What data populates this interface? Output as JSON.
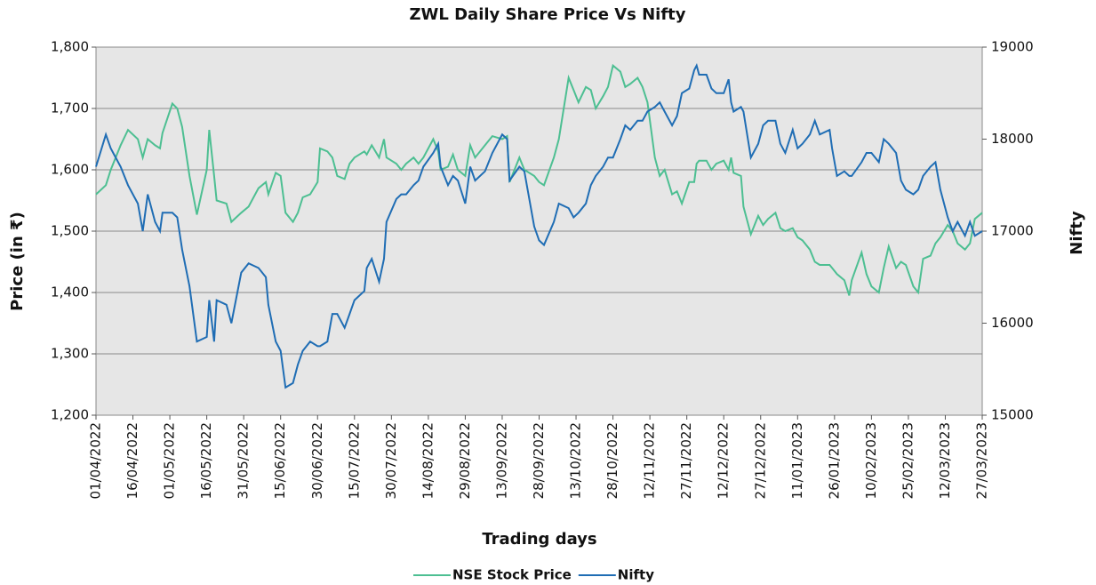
{
  "chart_data": {
    "type": "line",
    "title": "ZWL Daily Share Price Vs Nifty",
    "x_label": "Trading days",
    "y_label": "Price (in ₹)",
    "y2_label": "Nifty",
    "grid": true,
    "legend": "bottom",
    "x": [
      "01/04/2022",
      "05/04/2022",
      "07/04/2022",
      "11/04/2022",
      "14/04/2022",
      "18/04/2022",
      "20/04/2022",
      "22/04/2022",
      "25/04/2022",
      "27/04/2022",
      "28/04/2022",
      "02/05/2022",
      "04/05/2022",
      "06/05/2022",
      "09/05/2022",
      "12/05/2022",
      "16/05/2022",
      "17/05/2022",
      "19/05/2022",
      "20/05/2022",
      "24/05/2022",
      "26/05/2022",
      "30/05/2022",
      "02/06/2022",
      "06/06/2022",
      "09/06/2022",
      "10/06/2022",
      "13/06/2022",
      "15/06/2022",
      "17/06/2022",
      "20/06/2022",
      "22/06/2022",
      "24/06/2022",
      "27/06/2022",
      "30/06/2022",
      "01/07/2022",
      "04/07/2022",
      "06/07/2022",
      "08/07/2022",
      "11/07/2022",
      "13/07/2022",
      "15/07/2022",
      "19/07/2022",
      "20/07/2022",
      "22/07/2022",
      "25/07/2022",
      "27/07/2022",
      "28/07/2022",
      "01/08/2022",
      "03/08/2022",
      "05/08/2022",
      "08/08/2022",
      "10/08/2022",
      "12/08/2022",
      "16/08/2022",
      "18/08/2022",
      "19/08/2022",
      "22/08/2022",
      "24/08/2022",
      "26/08/2022",
      "29/08/2022",
      "31/08/2022",
      "02/09/2022",
      "06/09/2022",
      "09/09/2022",
      "13/09/2022",
      "15/09/2022",
      "16/09/2022",
      "20/09/2022",
      "22/09/2022",
      "26/09/2022",
      "28/09/2022",
      "30/09/2022",
      "04/10/2022",
      "06/10/2022",
      "10/10/2022",
      "12/10/2022",
      "14/10/2022",
      "17/10/2022",
      "19/10/2022",
      "21/10/2022",
      "24/10/2022",
      "26/10/2022",
      "28/10/2022",
      "31/10/2022",
      "02/11/2022",
      "04/11/2022",
      "07/11/2022",
      "09/11/2022",
      "11/11/2022",
      "14/11/2022",
      "16/11/2022",
      "18/11/2022",
      "21/11/2022",
      "23/11/2022",
      "25/11/2022",
      "28/11/2022",
      "30/11/2022",
      "01/12/2022",
      "02/12/2022",
      "05/12/2022",
      "07/12/2022",
      "09/12/2022",
      "12/12/2022",
      "14/12/2022",
      "15/12/2022",
      "16/12/2022",
      "19/12/2022",
      "20/12/2022",
      "23/12/2022",
      "26/12/2022",
      "28/12/2022",
      "30/12/2022",
      "02/01/2023",
      "04/01/2023",
      "06/01/2023",
      "09/01/2023",
      "11/01/2023",
      "13/01/2023",
      "16/01/2023",
      "18/01/2023",
      "20/01/2023",
      "24/01/2023",
      "25/01/2023",
      "27/01/2023",
      "30/01/2023",
      "01/02/2023",
      "02/02/2023",
      "06/02/2023",
      "08/02/2023",
      "10/02/2023",
      "13/02/2023",
      "15/02/2023",
      "17/02/2023",
      "20/02/2023",
      "22/02/2023",
      "24/02/2023",
      "27/02/2023",
      "01/03/2023",
      "03/03/2023",
      "06/03/2023",
      "08/03/2023",
      "10/03/2023",
      "13/03/2023",
      "15/03/2023",
      "17/03/2023",
      "20/03/2023",
      "22/03/2023",
      "24/03/2023",
      "27/03/2023"
    ],
    "series": [
      {
        "name": "NSE Stock Price",
        "color": "#4dbf92",
        "values": [
          1560,
          1575,
          1600,
          1640,
          1665,
          1650,
          1620,
          1650,
          1640,
          1635,
          1660,
          1708,
          1700,
          1670,
          1590,
          1527,
          1600,
          1665,
          1590,
          1550,
          1545,
          1515,
          1530,
          1540,
          1570,
          1580,
          1560,
          1595,
          1590,
          1530,
          1515,
          1530,
          1555,
          1560,
          1580,
          1635,
          1630,
          1620,
          1590,
          1585,
          1610,
          1620,
          1630,
          1625,
          1640,
          1620,
          1650,
          1620,
          1610,
          1600,
          1610,
          1620,
          1610,
          1620,
          1650,
          1630,
          1600,
          1605,
          1625,
          1600,
          1590,
          1640,
          1620,
          1640,
          1655,
          1650,
          1655,
          1580,
          1620,
          1600,
          1590,
          1580,
          1575,
          1620,
          1650,
          1750,
          1730,
          1710,
          1735,
          1730,
          1700,
          1720,
          1735,
          1770,
          1760,
          1735,
          1740,
          1750,
          1735,
          1710,
          1620,
          1590,
          1600,
          1560,
          1565,
          1545,
          1580,
          1580,
          1610,
          1615,
          1615,
          1600,
          1610,
          1615,
          1600,
          1620,
          1595,
          1590,
          1540,
          1495,
          1525,
          1510,
          1520,
          1530,
          1505,
          1500,
          1505,
          1490,
          1485,
          1470,
          1450,
          1445,
          1445,
          1440,
          1430,
          1420,
          1395,
          1420,
          1465,
          1430,
          1410,
          1400,
          1440,
          1475,
          1440,
          1450,
          1445,
          1410,
          1400,
          1455,
          1460,
          1480,
          1490,
          1510,
          1500,
          1480,
          1470,
          1480,
          1520,
          1530
        ]
      },
      {
        "name": "Nifty",
        "color": "#1f6db4",
        "axis": "y2",
        "values": [
          17700,
          18050,
          17900,
          17700,
          17500,
          17300,
          17000,
          17400,
          17100,
          17000,
          17200,
          17200,
          17150,
          16800,
          16400,
          15800,
          15850,
          16250,
          15800,
          16250,
          16200,
          16000,
          16550,
          16650,
          16600,
          16500,
          16200,
          15800,
          15700,
          15300,
          15350,
          15550,
          15700,
          15800,
          15750,
          15750,
          15800,
          16100,
          16100,
          15950,
          16100,
          16250,
          16350,
          16600,
          16700,
          16450,
          16700,
          17100,
          17350,
          17400,
          17400,
          17500,
          17550,
          17700,
          17850,
          17950,
          17700,
          17500,
          17600,
          17550,
          17300,
          17700,
          17550,
          17650,
          17850,
          18050,
          18000,
          17550,
          17700,
          17650,
          17050,
          16900,
          16850,
          17100,
          17300,
          17250,
          17150,
          17200,
          17300,
          17500,
          17600,
          17700,
          17800,
          17800,
          18000,
          18150,
          18100,
          18200,
          18200,
          18300,
          18350,
          18400,
          18300,
          18150,
          18250,
          18500,
          18550,
          18750,
          18800,
          18700,
          18700,
          18550,
          18500,
          18500,
          18650,
          18400,
          18300,
          18350,
          18300,
          17800,
          17950,
          18150,
          18200,
          18200,
          17950,
          17850,
          18100,
          17900,
          17950,
          18050,
          18200,
          18050,
          18100,
          17900,
          17600,
          17650,
          17600,
          17600,
          17750,
          17850,
          17850,
          17750,
          18000,
          17950,
          17850,
          17550,
          17450,
          17400,
          17450,
          17600,
          17700,
          17750,
          17450,
          17150,
          17000,
          17100,
          16950,
          17100,
          16950,
          17000
        ]
      }
    ],
    "xlim": [
      "01/04/2022",
      "27/03/2023"
    ],
    "xticks": [
      "01/04/2022",
      "16/04/2022",
      "01/05/2022",
      "16/05/2022",
      "31/05/2022",
      "15/06/2022",
      "30/06/2022",
      "15/07/2022",
      "30/07/2022",
      "14/08/2022",
      "29/08/2022",
      "13/09/2022",
      "28/09/2022",
      "13/10/2022",
      "28/10/2022",
      "12/11/2022",
      "27/11/2022",
      "12/12/2022",
      "27/12/2022",
      "11/01/2023",
      "26/01/2023",
      "10/02/2023",
      "25/02/2023",
      "12/03/2023",
      "27/03/2023"
    ],
    "ylim": [
      1200,
      1800
    ],
    "yticks": [
      {
        "value": 1200,
        "label": "1,200"
      },
      {
        "value": 1300,
        "label": "1,300"
      },
      {
        "value": 1400,
        "label": "1,400"
      },
      {
        "value": 1500,
        "label": "1,500"
      },
      {
        "value": 1600,
        "label": "1,600"
      },
      {
        "value": 1700,
        "label": "1,700"
      },
      {
        "value": 1800,
        "label": "1,800"
      }
    ],
    "y2lim": [
      15000,
      19000
    ],
    "y2ticks": [
      15000,
      16000,
      17000,
      18000,
      19000
    ]
  }
}
